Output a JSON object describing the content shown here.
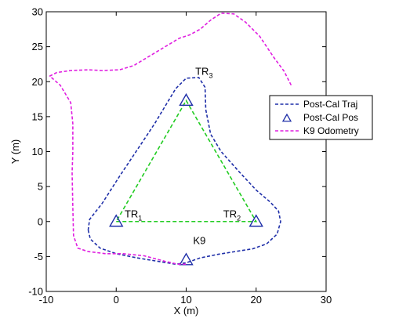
{
  "chart_data": {
    "type": "line",
    "xlabel": "X (m)",
    "ylabel": "Y (m)",
    "xlim": [
      -10,
      30
    ],
    "ylim": [
      -10,
      30
    ],
    "x_ticks": [
      -10,
      0,
      10,
      20,
      30
    ],
    "y_ticks": [
      -10,
      -5,
      0,
      5,
      10,
      15,
      20,
      25,
      30
    ],
    "grid": false,
    "legend_position": "right",
    "annotations": [
      {
        "name": "TR1",
        "text": "TR",
        "sub": "1",
        "x": 1.2,
        "y": 0.6
      },
      {
        "name": "TR2",
        "text": "TR",
        "sub": "2",
        "x": 15.3,
        "y": 0.6
      },
      {
        "name": "TR3",
        "text": "TR",
        "sub": "3",
        "x": 11.3,
        "y": 21.0
      },
      {
        "name": "K9",
        "text": "K9",
        "x": 11.0,
        "y": -3.2
      }
    ],
    "triangle": {
      "color": "#22cc22",
      "points": [
        {
          "x": 0,
          "y": 0
        },
        {
          "x": 20,
          "y": 0
        },
        {
          "x": 10,
          "y": 17.3
        }
      ]
    },
    "series": [
      {
        "name": "Post-Cal Traj",
        "style": "dashed",
        "color": "#1f2fa8",
        "points": [
          [
            -4,
            -1.2
          ],
          [
            -3.7,
            -2.5
          ],
          [
            -2.3,
            -3.8
          ],
          [
            0,
            -4.6
          ],
          [
            3,
            -5.2
          ],
          [
            6,
            -5.7
          ],
          [
            8.5,
            -6.1
          ],
          [
            10,
            -5.9
          ],
          [
            12,
            -5.2
          ],
          [
            14.5,
            -4.7
          ],
          [
            17,
            -4.3
          ],
          [
            19.5,
            -3.9
          ],
          [
            21.5,
            -3.2
          ],
          [
            23,
            -1.8
          ],
          [
            23.5,
            0
          ],
          [
            23.2,
            1.5
          ],
          [
            22,
            2.8
          ],
          [
            20,
            4.5
          ],
          [
            17.5,
            7.2
          ],
          [
            15,
            10
          ],
          [
            13.5,
            12.5
          ],
          [
            12.8,
            16
          ],
          [
            12.7,
            19.2
          ],
          [
            11.8,
            20.6
          ],
          [
            10,
            20.5
          ],
          [
            8.5,
            19
          ],
          [
            7,
            16.5
          ],
          [
            5.5,
            14
          ],
          [
            3.5,
            11
          ],
          [
            0.5,
            6.5
          ],
          [
            -2,
            2.6
          ],
          [
            -3.8,
            0.3
          ],
          [
            -4,
            -1.2
          ]
        ]
      },
      {
        "name": "Post-Cal Pos",
        "style": "marker-triangle",
        "color": "#1f2fa8",
        "points": [
          [
            0,
            0
          ],
          [
            20,
            0
          ],
          [
            10,
            17.3
          ],
          [
            10,
            -5.5
          ]
        ]
      },
      {
        "name": "K9 Odometry",
        "style": "dashed",
        "color": "#e01ee0",
        "points": [
          [
            25,
            19.5
          ],
          [
            24,
            21.5
          ],
          [
            22.5,
            23.5
          ],
          [
            20.5,
            26.5
          ],
          [
            18.5,
            28.5
          ],
          [
            16.8,
            29.7
          ],
          [
            15,
            29.8
          ],
          [
            13.5,
            28.8
          ],
          [
            12,
            27.5
          ],
          [
            10.5,
            26.7
          ],
          [
            9,
            26.2
          ],
          [
            7,
            25
          ],
          [
            5,
            23.8
          ],
          [
            2.5,
            22.3
          ],
          [
            0.5,
            21.7
          ],
          [
            -2,
            21.6
          ],
          [
            -4,
            21.7
          ],
          [
            -6.5,
            21.6
          ],
          [
            -8.5,
            21.3
          ],
          [
            -9.5,
            20.8
          ],
          [
            -8,
            19.5
          ],
          [
            -6.5,
            17
          ],
          [
            -6.2,
            14
          ],
          [
            -6.2,
            10
          ],
          [
            -6.3,
            7
          ],
          [
            -6.2,
            2
          ],
          [
            -6.1,
            -2
          ],
          [
            -5.5,
            -3.8
          ],
          [
            -4,
            -4.3
          ],
          [
            -1.5,
            -4.6
          ],
          [
            1,
            -4.6
          ],
          [
            4,
            -4.9
          ],
          [
            7,
            -5.7
          ],
          [
            8.8,
            -6.1
          ],
          [
            10.2,
            -6.1
          ]
        ]
      }
    ]
  }
}
